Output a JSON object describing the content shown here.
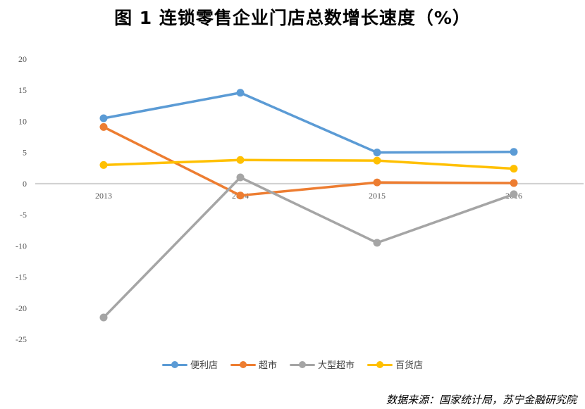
{
  "header": {
    "title": "图 1  连锁零售企业门店总数增长速度（%）"
  },
  "footer": {
    "source": "数据来源：国家统计局，苏宁金融研究院"
  },
  "chart_data": {
    "type": "line",
    "title": "图 1  连锁零售企业门店总数增长速度（%）",
    "x": [
      "2013",
      "2014",
      "2015",
      "2016"
    ],
    "ylim": [
      -25,
      20
    ],
    "yticks": [
      20,
      15,
      10,
      5,
      0,
      -5,
      -10,
      -15,
      -20,
      -25
    ],
    "grid": false,
    "legend_position": "bottom",
    "series": [
      {
        "name": "便利店",
        "color": "#5B9BD5",
        "values": [
          10.5,
          14.6,
          5.0,
          5.1
        ]
      },
      {
        "name": "超市",
        "color": "#ED7D31",
        "values": [
          9.1,
          -1.9,
          0.2,
          0.1
        ]
      },
      {
        "name": "大型超市",
        "color": "#A5A5A5",
        "values": [
          -21.5,
          1.0,
          -9.5,
          -1.7
        ]
      },
      {
        "name": "百货店",
        "color": "#FFC000",
        "values": [
          3.0,
          3.8,
          3.7,
          2.4
        ]
      }
    ]
  }
}
